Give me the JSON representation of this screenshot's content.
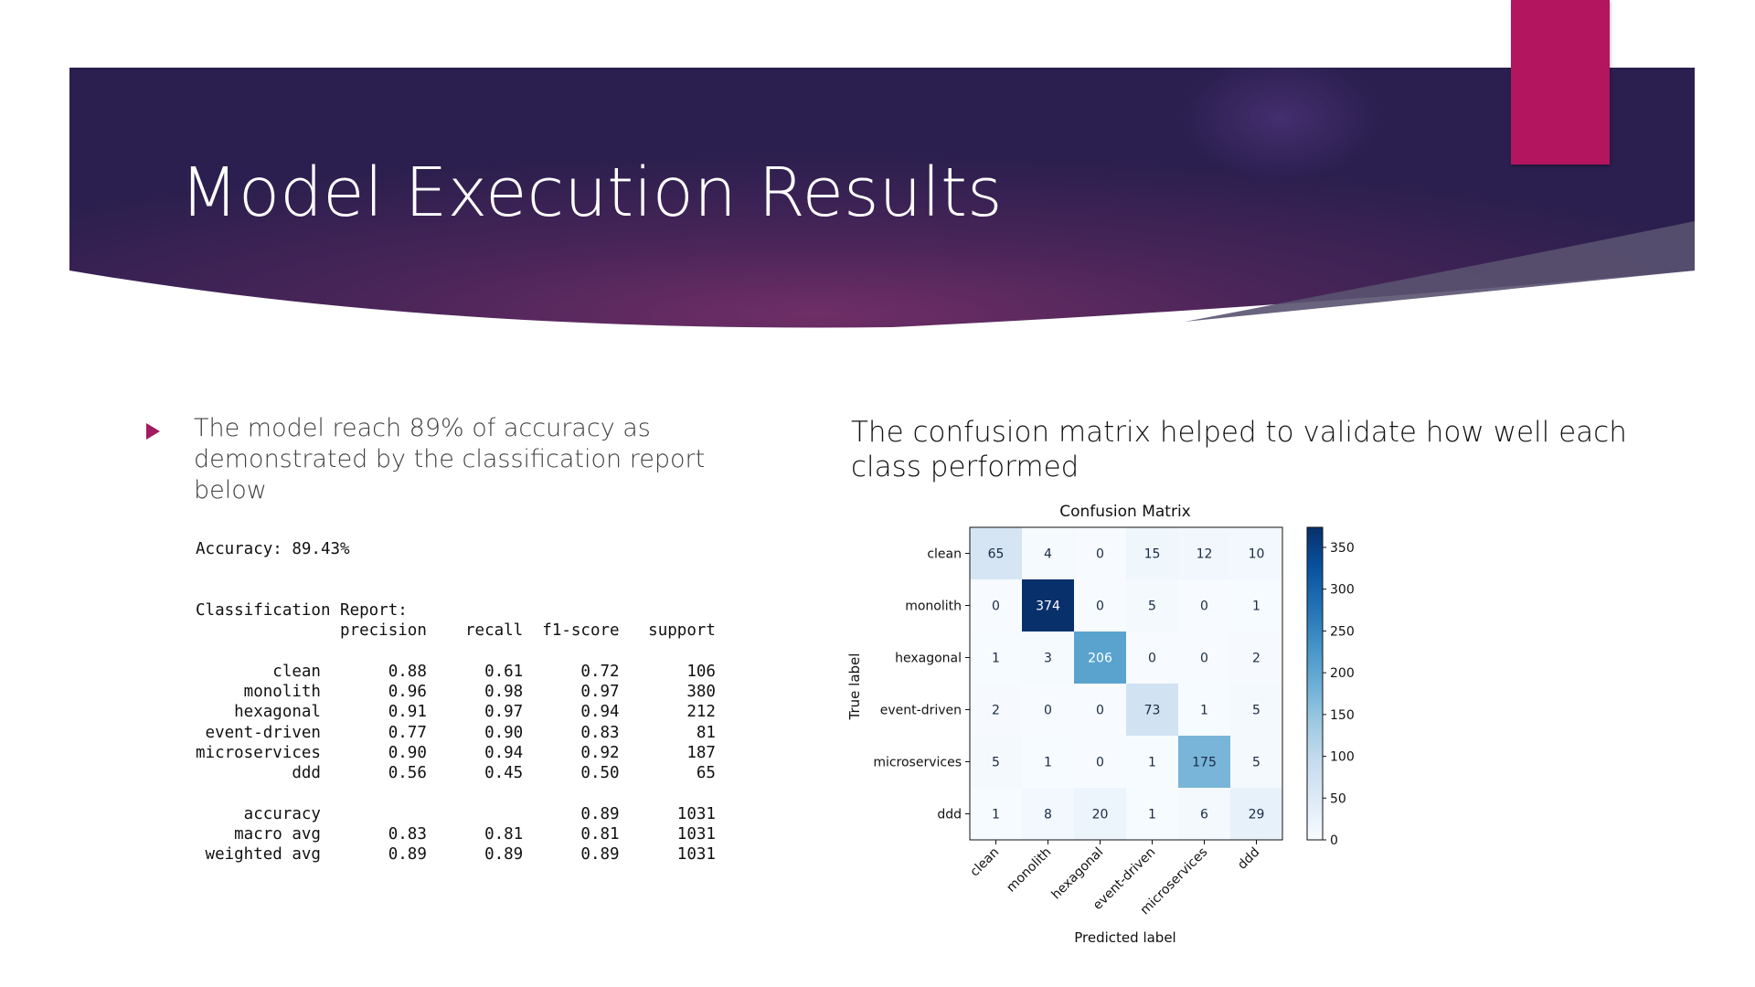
{
  "slide": {
    "title": "Model Execution Results",
    "colors": {
      "banner_dark": "#2a1f4e",
      "banner_mid": "#6b2d64",
      "accent_tab": "#b3155f",
      "bullet": "#a31a60"
    }
  },
  "left": {
    "bullet_text": "The model reach 89% of accuracy as demonstrated by the classification report below",
    "report_text": "Accuracy: 89.43%\n\n\nClassification Report:\n               precision    recall  f1-score   support\n\n        clean       0.88      0.61      0.72       106\n     monolith       0.96      0.98      0.97       380\n    hexagonal       0.91      0.97      0.94       212\n event-driven       0.77      0.90      0.83        81\nmicroservices       0.90      0.94      0.92       187\n          ddd       0.56      0.45      0.50        65\n\n     accuracy                           0.89      1031\n    macro avg       0.83      0.81      0.81      1031\n weighted avg       0.89      0.89      0.89      1031"
  },
  "right": {
    "heading": "The confusion matrix helped to validate how well each class performed"
  },
  "chart_data": {
    "type": "heatmap",
    "title": "Confusion Matrix",
    "xlabel": "Predicted label",
    "ylabel": "True label",
    "x_categories": [
      "clean",
      "monolith",
      "hexagonal",
      "event-driven",
      "microservices",
      "ddd"
    ],
    "y_categories": [
      "clean",
      "monolith",
      "hexagonal",
      "event-driven",
      "microservices",
      "ddd"
    ],
    "matrix": [
      [
        65,
        4,
        0,
        15,
        12,
        10
      ],
      [
        0,
        374,
        0,
        5,
        0,
        1
      ],
      [
        1,
        3,
        206,
        0,
        0,
        2
      ],
      [
        2,
        0,
        0,
        73,
        1,
        5
      ],
      [
        5,
        1,
        0,
        1,
        175,
        5
      ],
      [
        1,
        8,
        20,
        1,
        6,
        29
      ]
    ],
    "colormap": "Blues",
    "colorbar_range": [
      0,
      374
    ],
    "colorbar_ticks": [
      0,
      50,
      100,
      150,
      200,
      250,
      300,
      350
    ]
  }
}
